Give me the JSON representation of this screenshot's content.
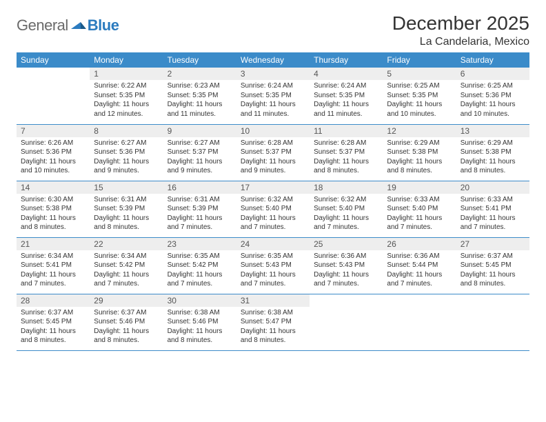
{
  "brand": {
    "part1": "General",
    "part2": "Blue"
  },
  "title": "December 2025",
  "location": "La Candelaria, Mexico",
  "colors": {
    "header_bg": "#3b8bc9",
    "header_fg": "#ffffff",
    "daynum_bg": "#eeeeee",
    "rule": "#3b8bc9",
    "logo_gray": "#6a6a6a",
    "logo_blue": "#2b7bbf"
  },
  "weekdays": [
    "Sunday",
    "Monday",
    "Tuesday",
    "Wednesday",
    "Thursday",
    "Friday",
    "Saturday"
  ],
  "weeks": [
    [
      {
        "n": "",
        "sr": "",
        "ss": "",
        "dl": ""
      },
      {
        "n": "1",
        "sr": "Sunrise: 6:22 AM",
        "ss": "Sunset: 5:35 PM",
        "dl": "Daylight: 11 hours and 12 minutes."
      },
      {
        "n": "2",
        "sr": "Sunrise: 6:23 AM",
        "ss": "Sunset: 5:35 PM",
        "dl": "Daylight: 11 hours and 11 minutes."
      },
      {
        "n": "3",
        "sr": "Sunrise: 6:24 AM",
        "ss": "Sunset: 5:35 PM",
        "dl": "Daylight: 11 hours and 11 minutes."
      },
      {
        "n": "4",
        "sr": "Sunrise: 6:24 AM",
        "ss": "Sunset: 5:35 PM",
        "dl": "Daylight: 11 hours and 11 minutes."
      },
      {
        "n": "5",
        "sr": "Sunrise: 6:25 AM",
        "ss": "Sunset: 5:35 PM",
        "dl": "Daylight: 11 hours and 10 minutes."
      },
      {
        "n": "6",
        "sr": "Sunrise: 6:25 AM",
        "ss": "Sunset: 5:36 PM",
        "dl": "Daylight: 11 hours and 10 minutes."
      }
    ],
    [
      {
        "n": "7",
        "sr": "Sunrise: 6:26 AM",
        "ss": "Sunset: 5:36 PM",
        "dl": "Daylight: 11 hours and 10 minutes."
      },
      {
        "n": "8",
        "sr": "Sunrise: 6:27 AM",
        "ss": "Sunset: 5:36 PM",
        "dl": "Daylight: 11 hours and 9 minutes."
      },
      {
        "n": "9",
        "sr": "Sunrise: 6:27 AM",
        "ss": "Sunset: 5:37 PM",
        "dl": "Daylight: 11 hours and 9 minutes."
      },
      {
        "n": "10",
        "sr": "Sunrise: 6:28 AM",
        "ss": "Sunset: 5:37 PM",
        "dl": "Daylight: 11 hours and 9 minutes."
      },
      {
        "n": "11",
        "sr": "Sunrise: 6:28 AM",
        "ss": "Sunset: 5:37 PM",
        "dl": "Daylight: 11 hours and 8 minutes."
      },
      {
        "n": "12",
        "sr": "Sunrise: 6:29 AM",
        "ss": "Sunset: 5:38 PM",
        "dl": "Daylight: 11 hours and 8 minutes."
      },
      {
        "n": "13",
        "sr": "Sunrise: 6:29 AM",
        "ss": "Sunset: 5:38 PM",
        "dl": "Daylight: 11 hours and 8 minutes."
      }
    ],
    [
      {
        "n": "14",
        "sr": "Sunrise: 6:30 AM",
        "ss": "Sunset: 5:38 PM",
        "dl": "Daylight: 11 hours and 8 minutes."
      },
      {
        "n": "15",
        "sr": "Sunrise: 6:31 AM",
        "ss": "Sunset: 5:39 PM",
        "dl": "Daylight: 11 hours and 8 minutes."
      },
      {
        "n": "16",
        "sr": "Sunrise: 6:31 AM",
        "ss": "Sunset: 5:39 PM",
        "dl": "Daylight: 11 hours and 7 minutes."
      },
      {
        "n": "17",
        "sr": "Sunrise: 6:32 AM",
        "ss": "Sunset: 5:40 PM",
        "dl": "Daylight: 11 hours and 7 minutes."
      },
      {
        "n": "18",
        "sr": "Sunrise: 6:32 AM",
        "ss": "Sunset: 5:40 PM",
        "dl": "Daylight: 11 hours and 7 minutes."
      },
      {
        "n": "19",
        "sr": "Sunrise: 6:33 AM",
        "ss": "Sunset: 5:40 PM",
        "dl": "Daylight: 11 hours and 7 minutes."
      },
      {
        "n": "20",
        "sr": "Sunrise: 6:33 AM",
        "ss": "Sunset: 5:41 PM",
        "dl": "Daylight: 11 hours and 7 minutes."
      }
    ],
    [
      {
        "n": "21",
        "sr": "Sunrise: 6:34 AM",
        "ss": "Sunset: 5:41 PM",
        "dl": "Daylight: 11 hours and 7 minutes."
      },
      {
        "n": "22",
        "sr": "Sunrise: 6:34 AM",
        "ss": "Sunset: 5:42 PM",
        "dl": "Daylight: 11 hours and 7 minutes."
      },
      {
        "n": "23",
        "sr": "Sunrise: 6:35 AM",
        "ss": "Sunset: 5:42 PM",
        "dl": "Daylight: 11 hours and 7 minutes."
      },
      {
        "n": "24",
        "sr": "Sunrise: 6:35 AM",
        "ss": "Sunset: 5:43 PM",
        "dl": "Daylight: 11 hours and 7 minutes."
      },
      {
        "n": "25",
        "sr": "Sunrise: 6:36 AM",
        "ss": "Sunset: 5:43 PM",
        "dl": "Daylight: 11 hours and 7 minutes."
      },
      {
        "n": "26",
        "sr": "Sunrise: 6:36 AM",
        "ss": "Sunset: 5:44 PM",
        "dl": "Daylight: 11 hours and 7 minutes."
      },
      {
        "n": "27",
        "sr": "Sunrise: 6:37 AM",
        "ss": "Sunset: 5:45 PM",
        "dl": "Daylight: 11 hours and 8 minutes."
      }
    ],
    [
      {
        "n": "28",
        "sr": "Sunrise: 6:37 AM",
        "ss": "Sunset: 5:45 PM",
        "dl": "Daylight: 11 hours and 8 minutes."
      },
      {
        "n": "29",
        "sr": "Sunrise: 6:37 AM",
        "ss": "Sunset: 5:46 PM",
        "dl": "Daylight: 11 hours and 8 minutes."
      },
      {
        "n": "30",
        "sr": "Sunrise: 6:38 AM",
        "ss": "Sunset: 5:46 PM",
        "dl": "Daylight: 11 hours and 8 minutes."
      },
      {
        "n": "31",
        "sr": "Sunrise: 6:38 AM",
        "ss": "Sunset: 5:47 PM",
        "dl": "Daylight: 11 hours and 8 minutes."
      },
      {
        "n": "",
        "sr": "",
        "ss": "",
        "dl": ""
      },
      {
        "n": "",
        "sr": "",
        "ss": "",
        "dl": ""
      },
      {
        "n": "",
        "sr": "",
        "ss": "",
        "dl": ""
      }
    ]
  ]
}
